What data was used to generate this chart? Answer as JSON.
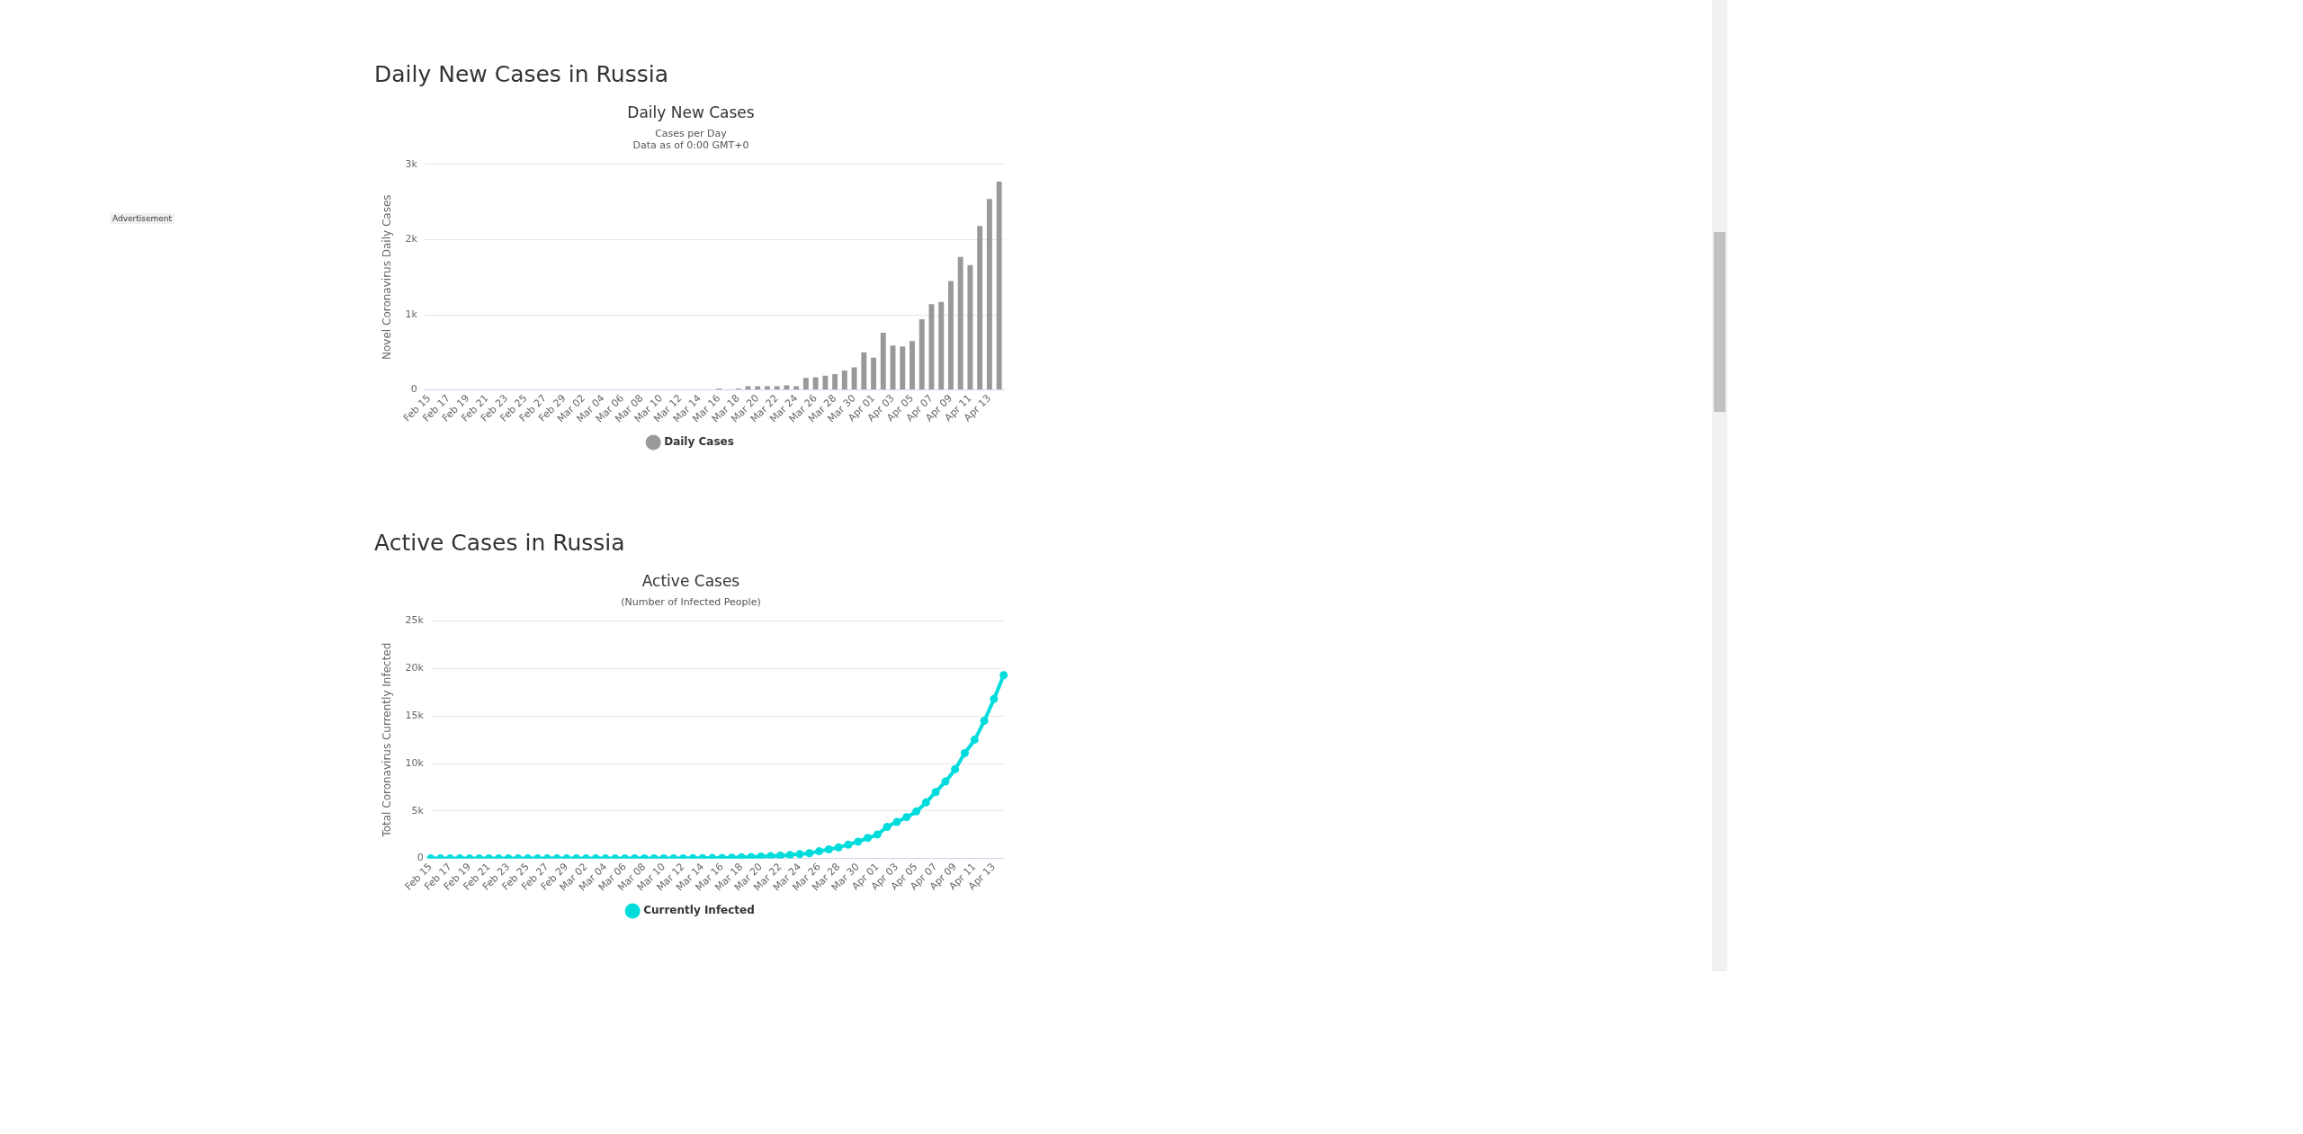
{
  "chart_data": [
    {
      "type": "bar",
      "title": "Daily New Cases",
      "subtitle": "Cases per Day\nData as of 0:00 GMT+0",
      "ylabel": "Novel Coronavirus Daily Cases",
      "annotations": [
        "Daily New Cases in Russia",
        "Advertisement"
      ],
      "categories": [
        "Feb 15",
        null,
        "Feb 17",
        null,
        "Feb 19",
        null,
        "Feb 21",
        null,
        "Feb 23",
        null,
        "Feb 25",
        null,
        "Feb 27",
        null,
        "Feb 29",
        null,
        "Mar 02",
        null,
        "Mar 04",
        null,
        "Mar 06",
        null,
        "Mar 08",
        null,
        "Mar 10",
        null,
        "Mar 12",
        null,
        "Mar 14",
        null,
        "Mar 16",
        null,
        "Mar 18",
        null,
        "Mar 20",
        null,
        "Mar 22",
        null,
        "Mar 24",
        null,
        "Mar 26",
        null,
        "Mar 28",
        null,
        "Mar 30",
        null,
        "Apr 01",
        null,
        "Apr 03",
        null,
        "Apr 05",
        null,
        "Apr 07",
        null,
        "Apr 09",
        null,
        "Apr 11",
        null,
        "Apr 13",
        null
      ],
      "series": [
        {
          "name": "Daily Cases",
          "color": "#999999",
          "values": [
            0,
            0,
            0,
            0,
            0,
            0,
            0,
            0,
            0,
            0,
            0,
            0,
            0,
            0,
            0,
            0,
            0,
            0,
            0,
            0,
            0,
            0,
            0,
            0,
            0,
            0,
            0,
            0,
            0,
            0,
            20,
            0,
            20,
            50,
            50,
            50,
            50,
            60,
            50,
            160,
            170,
            190,
            210,
            260,
            300,
            500,
            430,
            760,
            590,
            580,
            650,
            940,
            1140,
            1170,
            1450,
            1770,
            1660,
            2180,
            2540,
            2770
          ]
        }
      ],
      "ylim": [
        0,
        3000
      ],
      "yticks": [
        0,
        {
          "value": 1000,
          "label": "1k"
        },
        {
          "value": 2000,
          "label": "2k"
        },
        {
          "value": 3000,
          "label": "3k"
        }
      ],
      "grid": "y",
      "legend": "bottom"
    },
    {
      "type": "line",
      "title": "Active Cases",
      "subtitle": "(Number of Infected People)",
      "ylabel": "Total Coronavirus Currently Infected",
      "annotations": [
        "Active Cases in Russia"
      ],
      "categories": [
        "Feb 15",
        null,
        "Feb 17",
        null,
        "Feb 19",
        null,
        "Feb 21",
        null,
        "Feb 23",
        null,
        "Feb 25",
        null,
        "Feb 27",
        null,
        "Feb 29",
        null,
        "Mar 02",
        null,
        "Mar 04",
        null,
        "Mar 06",
        null,
        "Mar 08",
        null,
        "Mar 10",
        null,
        "Mar 12",
        null,
        "Mar 14",
        null,
        "Mar 16",
        null,
        "Mar 18",
        null,
        "Mar 20",
        null,
        "Mar 22",
        null,
        "Mar 24",
        null,
        "Mar 26",
        null,
        "Mar 28",
        null,
        "Mar 30",
        null,
        "Apr 01",
        null,
        "Apr 03",
        null,
        "Apr 05",
        null,
        "Apr 07",
        null,
        "Apr 09",
        null,
        "Apr 11",
        null,
        "Apr 13",
        null
      ],
      "series": [
        {
          "name": "Currently Infected",
          "color": "#00dcdc",
          "values": [
            2,
            2,
            2,
            2,
            2,
            2,
            2,
            2,
            2,
            2,
            2,
            2,
            2,
            2,
            2,
            2,
            3,
            3,
            3,
            3,
            4,
            10,
            10,
            15,
            17,
            20,
            20,
            28,
            45,
            50,
            60,
            90,
            120,
            150,
            200,
            250,
            300,
            370,
            450,
            560,
            760,
            960,
            1160,
            1460,
            1770,
            2170,
            2530,
            3330,
            3840,
            4350,
            4950,
            5900,
            7000,
            8100,
            9400,
            11100,
            12500,
            14500,
            16800,
            19300
          ]
        }
      ],
      "ylim": [
        0,
        25000
      ],
      "yticks": [
        0,
        {
          "value": 5000,
          "label": "5k"
        },
        {
          "value": 10000,
          "label": "10k"
        },
        {
          "value": 15000,
          "label": "15k"
        },
        {
          "value": 20000,
          "label": "20k"
        },
        {
          "value": 25000,
          "label": "25k"
        }
      ],
      "grid": "y",
      "legend": "bottom",
      "marker": "circle",
      "line_style": "solid"
    }
  ]
}
